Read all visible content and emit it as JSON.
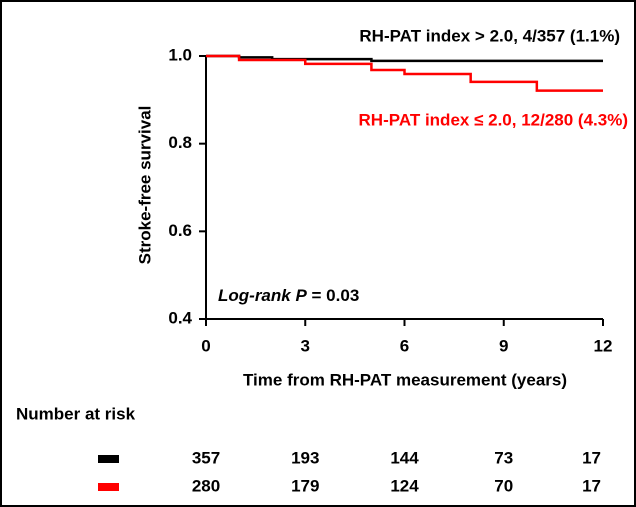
{
  "chart_data": {
    "type": "step",
    "y_label": "Stroke-free survival",
    "x_label": "Time from RH-PAT measurement (years)",
    "xlim": [
      0,
      12
    ],
    "xticks": [
      0,
      3,
      6,
      9,
      12
    ],
    "ylim": [
      0.4,
      1.0
    ],
    "yticks": [
      0.4,
      0.6,
      0.8,
      {
        "value": 1.0,
        "label": "1.0"
      }
    ],
    "series": [
      {
        "name": "RH-PAT index > 2.0, 4/357 (1.1%)",
        "color": "#000000",
        "x": [
          0,
          1,
          2,
          5,
          12
        ],
        "values": [
          1,
          0.997,
          0.993,
          0.989,
          0.989
        ]
      },
      {
        "name": "RH-PAT index ≤ 2.0, 12/280 (4.3%)",
        "color": "#ff0000",
        "x": [
          0,
          1,
          3,
          5,
          6,
          8,
          10,
          12
        ],
        "values": [
          1,
          0.991,
          0.982,
          0.968,
          0.959,
          0.941,
          0.921,
          0.921
        ]
      }
    ],
    "annotation": [
      "Log-rank P",
      "= 0.03"
    ],
    "risk_table": {
      "title": "Number at risk",
      "rows": [
        [
          357,
          193,
          144,
          73,
          17
        ],
        [
          280,
          179,
          124,
          70,
          17
        ]
      ]
    }
  }
}
